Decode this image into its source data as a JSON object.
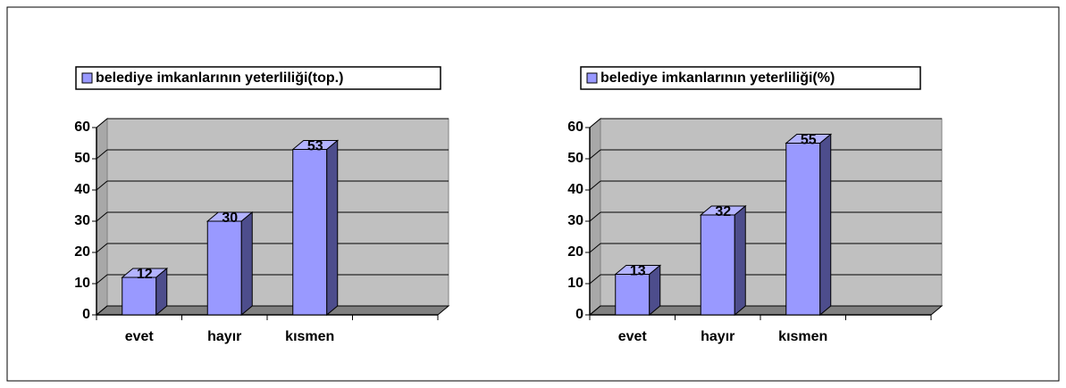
{
  "chart_data": [
    {
      "type": "bar",
      "categories": [
        "evet",
        "hayır",
        "kısmen",
        null
      ],
      "series": [
        {
          "name": "belediye imkanlarının yeterliliği(top.)",
          "color": "#9999ff",
          "values": [
            12,
            30,
            53,
            null
          ]
        }
      ],
      "ylim": [
        0,
        60
      ],
      "yticks": [
        0,
        10,
        20,
        30,
        40,
        50,
        60
      ],
      "grid": true,
      "legend": "top"
    },
    {
      "type": "bar",
      "categories": [
        "evet",
        "hayır",
        "kısmen",
        null
      ],
      "series": [
        {
          "name": "belediye imkanlarının yeterliliği(%)",
          "color": "#9999ff",
          "values": [
            13,
            32,
            55,
            null
          ]
        }
      ],
      "ylim": [
        0,
        60
      ],
      "yticks": [
        0,
        10,
        20,
        30,
        40,
        50,
        60
      ],
      "grid": true,
      "legend": "top"
    }
  ]
}
